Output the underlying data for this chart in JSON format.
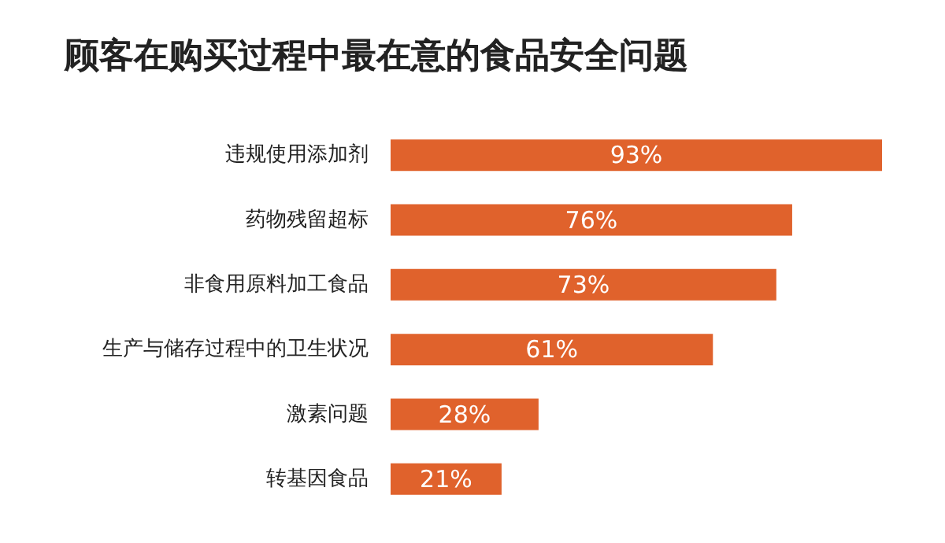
{
  "chart_data": {
    "type": "bar",
    "orientation": "horizontal",
    "title": "顾客在购买过程中最在意的食品安全问题",
    "categories": [
      "违规使用添加剂",
      "药物残留超标",
      "非食用原料加工食品",
      "生产与储存过程中的卫生状况",
      "激素问题",
      "转基因食品"
    ],
    "values": [
      93,
      76,
      73,
      61,
      28,
      21
    ],
    "value_labels": [
      "93%",
      "76%",
      "73%",
      "61%",
      "28%",
      "21%"
    ],
    "color": "#e0622c"
  }
}
